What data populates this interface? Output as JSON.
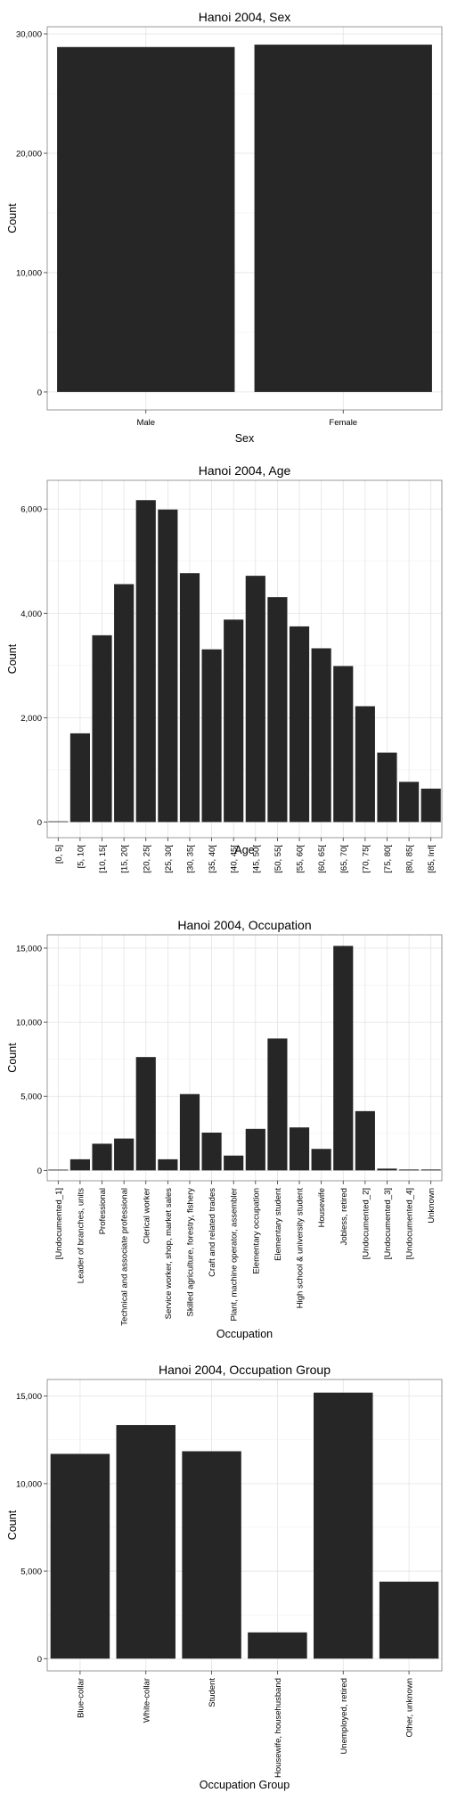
{
  "chart_data": [
    {
      "type": "bar",
      "title": "Hanoi 2004, Sex",
      "xlabel": "Sex",
      "ylabel": "Count",
      "categories": [
        "Male",
        "Female"
      ],
      "values": [
        28900,
        29100
      ],
      "ylim": [
        -1500,
        30600
      ],
      "yticks": [
        0,
        10000,
        20000,
        30000
      ],
      "ytick_labels": [
        "0",
        "10,000",
        "20,000",
        "30,000"
      ],
      "grid": true,
      "bar_color": "#262626"
    },
    {
      "type": "bar",
      "title": "Hanoi 2004, Age",
      "xlabel": "Age",
      "ylabel": "Count",
      "categories": [
        "[0, 5]",
        "[5, 10[",
        "[10, 15[",
        "[15, 20[",
        "[20, 25[",
        "[25, 30[",
        "[30, 35[",
        "[35, 40[",
        "[40, 45[",
        "[45, 50[",
        "[50, 55[",
        "[55, 60[",
        "[60, 65[",
        "[65, 70[",
        "[70, 75[",
        "[75, 80[",
        "[80, 85[",
        "[85, Inf["
      ],
      "values": [
        0,
        1700,
        3580,
        4560,
        6170,
        5990,
        4770,
        3310,
        3880,
        4720,
        4310,
        3750,
        3330,
        2990,
        2220,
        1330,
        770,
        640
      ],
      "ylim": [
        -300,
        6550
      ],
      "yticks": [
        0,
        2000,
        4000,
        6000
      ],
      "ytick_labels": [
        "0",
        "2,000",
        "4,000",
        "6,000"
      ],
      "grid": true,
      "bar_color": "#262626"
    },
    {
      "type": "bar",
      "title": "Hanoi 2004, Occupation",
      "xlabel": "Occupation",
      "ylabel": "Count",
      "categories": [
        "[Undocumented_1]",
        "Leader of branches, units",
        "Professional",
        "Technical and associate professional",
        "Clerical worker",
        "Service worker, shop, market sales",
        "Skilled agriculture, forestry, fishery",
        "Craft and related trades",
        "Plant, machine operator, assembler",
        "Elementary occupation",
        "Elementary student",
        "High school & university student",
        "Housewife",
        "Jobless, retired",
        "[Undocumented_2]",
        "[Undocumented_3]",
        "[Undocumented_4]",
        "Unknown"
      ],
      "values": [
        50,
        750,
        1800,
        2150,
        7650,
        750,
        5150,
        2550,
        1000,
        2800,
        8900,
        2900,
        1450,
        15150,
        4000,
        120,
        60,
        60
      ],
      "ylim": [
        -700,
        15900
      ],
      "yticks": [
        0,
        5000,
        10000,
        15000
      ],
      "ytick_labels": [
        "0",
        "5,000",
        "10,000",
        "15,000"
      ],
      "grid": true,
      "bar_color": "#262626"
    },
    {
      "type": "bar",
      "title": "Hanoi 2004, Occupation Group",
      "xlabel": "Occupation Group",
      "ylabel": "Count",
      "categories": [
        "Blue-collar",
        "White-collar",
        "Student",
        "Housewife, househusband",
        "Unemployed, retired",
        "Other, unknown"
      ],
      "values": [
        11700,
        13350,
        11850,
        1500,
        15200,
        4400
      ],
      "ylim": [
        -700,
        15950
      ],
      "yticks": [
        0,
        5000,
        10000,
        15000
      ],
      "ytick_labels": [
        "0",
        "5,000",
        "10,000",
        "15,000"
      ],
      "grid": true,
      "bar_color": "#262626"
    }
  ]
}
